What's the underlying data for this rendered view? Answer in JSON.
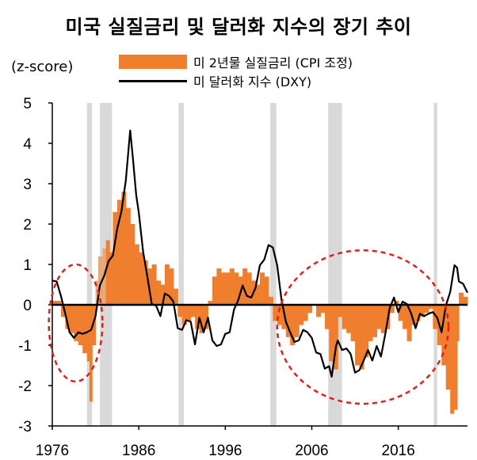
{
  "title": "미국 실질금리 및 달러화 지수의 장기 추이",
  "unit": "(z-score)",
  "legend": {
    "bar": "미 2년물 실질금리 (CPI 조정)",
    "line": "미 달러화 지수 (DXY)"
  },
  "colors": {
    "bar": "#ef7e2f",
    "bar_light": "#e8a978",
    "line": "#000000",
    "recession": "#d9d9d9",
    "ellipse": "#e0201b"
  },
  "chart_data": {
    "type": "bar+line",
    "title": "미국 실질금리 및 달러화 지수의 장기 추이",
    "ylabel": "(z-score)",
    "ylim": [
      -3,
      5
    ],
    "y_ticks": [
      "5",
      "4",
      "3",
      "2",
      "1",
      "0",
      "-1",
      "-2",
      "-3"
    ],
    "xlim": [
      1976,
      2024
    ],
    "x_ticks": [
      "1976",
      "1986",
      "1996",
      "2006",
      "2016"
    ],
    "recessions": [
      [
        1980.0,
        1980.6
      ],
      [
        1981.5,
        1982.9
      ],
      [
        1990.6,
        1991.2
      ],
      [
        2001.2,
        2001.9
      ],
      [
        2007.9,
        2009.5
      ],
      [
        2020.1,
        2020.5
      ]
    ],
    "circled_periods": [
      [
        1975.6,
        1981.8
      ],
      [
        2002.0,
        2021.8
      ]
    ],
    "series": [
      {
        "name": "미 2년물 실질금리 (CPI 조정)",
        "type": "bar",
        "points": [
          [
            1976,
            0.1
          ],
          [
            1977,
            -0.3
          ],
          [
            1977.5,
            -0.6
          ],
          [
            1978,
            -0.7
          ],
          [
            1978.5,
            -0.9
          ],
          [
            1979,
            -1.0
          ],
          [
            1979.5,
            -1.2
          ],
          [
            1980,
            -1.4
          ],
          [
            1980.3,
            -2.4
          ],
          [
            1980.6,
            -1.0
          ],
          [
            1981,
            0.6
          ],
          [
            1981.3,
            1.2
          ],
          [
            1981.8,
            1.4
          ],
          [
            1982.2,
            1.6
          ],
          [
            1982.6,
            1.3
          ],
          [
            1983,
            2.3
          ],
          [
            1983.5,
            2.6
          ],
          [
            1984,
            2.8
          ],
          [
            1984.5,
            2.4
          ],
          [
            1985,
            2.0
          ],
          [
            1985.5,
            1.5
          ],
          [
            1986,
            1.3
          ],
          [
            1986.5,
            1.1
          ],
          [
            1987,
            0.9
          ],
          [
            1987.5,
            1.0
          ],
          [
            1988,
            0.6
          ],
          [
            1988.5,
            0.5
          ],
          [
            1989,
            1.0
          ],
          [
            1989.5,
            0.9
          ],
          [
            1990,
            0.4
          ],
          [
            1990.5,
            -0.3
          ],
          [
            1991,
            -0.5
          ],
          [
            1991.5,
            -0.4
          ],
          [
            1992,
            -0.3
          ],
          [
            1992.5,
            -0.6
          ],
          [
            1993,
            -0.7
          ],
          [
            1993.5,
            -0.6
          ],
          [
            1994,
            0.1
          ],
          [
            1994.5,
            0.7
          ],
          [
            1995,
            0.9
          ],
          [
            1995.5,
            0.8
          ],
          [
            1996,
            0.8
          ],
          [
            1996.5,
            0.9
          ],
          [
            1997,
            0.8
          ],
          [
            1997.5,
            0.7
          ],
          [
            1998,
            0.9
          ],
          [
            1998.5,
            0.8
          ],
          [
            1999,
            0.6
          ],
          [
            1999.5,
            0.5
          ],
          [
            2000,
            0.8
          ],
          [
            2000.5,
            0.7
          ],
          [
            2001,
            0.2
          ],
          [
            2001.5,
            -0.4
          ],
          [
            2002,
            -0.5
          ],
          [
            2002.5,
            -0.6
          ],
          [
            2003,
            -0.8
          ],
          [
            2003.5,
            -1.0
          ],
          [
            2004,
            -0.8
          ],
          [
            2004.5,
            -0.5
          ],
          [
            2005,
            -0.4
          ],
          [
            2005.5,
            -0.2
          ],
          [
            2006,
            0.0
          ],
          [
            2006.5,
            -0.3
          ],
          [
            2007,
            -0.2
          ],
          [
            2007.5,
            -0.6
          ],
          [
            2008,
            -1.4
          ],
          [
            2008.5,
            -1.6
          ],
          [
            2009,
            -0.3
          ],
          [
            2009.5,
            -0.6
          ],
          [
            2010,
            -0.7
          ],
          [
            2010.5,
            -0.9
          ],
          [
            2011,
            -1.5
          ],
          [
            2011.5,
            -1.6
          ],
          [
            2012,
            -1.3
          ],
          [
            2012.5,
            -0.9
          ],
          [
            2013,
            -0.8
          ],
          [
            2013.5,
            -0.6
          ],
          [
            2014,
            -0.7
          ],
          [
            2014.5,
            -0.6
          ],
          [
            2015,
            -0.2
          ],
          [
            2015.5,
            0.1
          ],
          [
            2016,
            -0.4
          ],
          [
            2016.5,
            -0.6
          ],
          [
            2017,
            -0.9
          ],
          [
            2017.5,
            -0.5
          ],
          [
            2018,
            -0.4
          ],
          [
            2018.5,
            -0.3
          ],
          [
            2019,
            -0.2
          ],
          [
            2019.5,
            -0.1
          ],
          [
            2020,
            -0.6
          ],
          [
            2020.5,
            -1.0
          ],
          [
            2021,
            -1.5
          ],
          [
            2021.5,
            -2.1
          ],
          [
            2022,
            -2.7
          ],
          [
            2022.4,
            -2.6
          ],
          [
            2022.8,
            -0.9
          ],
          [
            2023,
            0.3
          ],
          [
            2023.5,
            0.2
          ]
        ]
      },
      {
        "name": "미 달러화 지수 (DXY)",
        "type": "line",
        "points": [
          [
            1976,
            0.6
          ],
          [
            1976.5,
            0.5
          ],
          [
            1977,
            0.3
          ],
          [
            1977.5,
            -0.3
          ],
          [
            1978,
            -0.6
          ],
          [
            1978.5,
            -0.9
          ],
          [
            1979,
            -0.6
          ],
          [
            1979.5,
            -0.8
          ],
          [
            1980,
            -0.6
          ],
          [
            1980.5,
            -0.7
          ],
          [
            1981,
            -0.2
          ],
          [
            1981.5,
            0.4
          ],
          [
            1982,
            0.8
          ],
          [
            1982.5,
            1.0
          ],
          [
            1983,
            1.3
          ],
          [
            1983.5,
            1.8
          ],
          [
            1984,
            2.4
          ],
          [
            1984.5,
            3.0
          ],
          [
            1985,
            4.4
          ],
          [
            1985.3,
            3.6
          ],
          [
            1985.7,
            2.8
          ],
          [
            1986,
            2.2
          ],
          [
            1986.5,
            1.4
          ],
          [
            1987,
            0.6
          ],
          [
            1987.5,
            0.1
          ],
          [
            1988,
            -0.1
          ],
          [
            1988.5,
            -0.2
          ],
          [
            1989,
            0.2
          ],
          [
            1989.5,
            0.3
          ],
          [
            1990,
            0.0
          ],
          [
            1990.5,
            -0.5
          ],
          [
            1991,
            -0.7
          ],
          [
            1991.5,
            -0.3
          ],
          [
            1992,
            -0.5
          ],
          [
            1992.5,
            -0.9
          ],
          [
            1993,
            -0.4
          ],
          [
            1993.5,
            -0.6
          ],
          [
            1994,
            -0.4
          ],
          [
            1994.5,
            -0.8
          ],
          [
            1995,
            -1.1
          ],
          [
            1995.5,
            -0.9
          ],
          [
            1996,
            -0.8
          ],
          [
            1996.5,
            -0.6
          ],
          [
            1997,
            -0.2
          ],
          [
            1997.5,
            0.2
          ],
          [
            1998,
            0.4
          ],
          [
            1998.5,
            0.3
          ],
          [
            1999,
            0.1
          ],
          [
            1999.5,
            0.5
          ],
          [
            2000,
            0.9
          ],
          [
            2000.5,
            1.2
          ],
          [
            2001,
            1.4
          ],
          [
            2001.5,
            1.5
          ],
          [
            2002,
            0.9
          ],
          [
            2002.5,
            0.2
          ],
          [
            2003,
            -0.5
          ],
          [
            2003.5,
            -0.6
          ],
          [
            2004,
            -1.0
          ],
          [
            2004.5,
            -0.8
          ],
          [
            2005,
            -0.7
          ],
          [
            2005.5,
            -0.6
          ],
          [
            2006,
            -0.9
          ],
          [
            2006.5,
            -1.1
          ],
          [
            2007,
            -1.3
          ],
          [
            2007.5,
            -1.5
          ],
          [
            2008,
            -1.6
          ],
          [
            2008.3,
            -1.7
          ],
          [
            2008.8,
            -1.1
          ],
          [
            2009,
            -0.8
          ],
          [
            2009.5,
            -1.2
          ],
          [
            2010,
            -1.0
          ],
          [
            2010.5,
            -1.3
          ],
          [
            2011,
            -1.6
          ],
          [
            2011.5,
            -1.7
          ],
          [
            2012,
            -1.3
          ],
          [
            2012.5,
            -1.2
          ],
          [
            2013,
            -1.3
          ],
          [
            2013.5,
            -1.1
          ],
          [
            2014,
            -1.2
          ],
          [
            2014.5,
            -0.8
          ],
          [
            2015,
            0.0
          ],
          [
            2015.5,
            0.1
          ],
          [
            2016,
            -0.1
          ],
          [
            2016.5,
            0.0
          ],
          [
            2017,
            0.1
          ],
          [
            2017.5,
            -0.3
          ],
          [
            2018,
            -0.5
          ],
          [
            2018.5,
            -0.3
          ],
          [
            2019,
            -0.2
          ],
          [
            2019.5,
            -0.3
          ],
          [
            2020,
            -0.1
          ],
          [
            2020.5,
            -0.4
          ],
          [
            2021,
            -0.6
          ],
          [
            2021.5,
            -0.1
          ],
          [
            2022,
            0.4
          ],
          [
            2022.5,
            0.9
          ],
          [
            2022.8,
            1.0
          ],
          [
            2023,
            0.5
          ],
          [
            2023.5,
            0.6
          ],
          [
            2024,
            0.3
          ]
        ]
      }
    ]
  }
}
